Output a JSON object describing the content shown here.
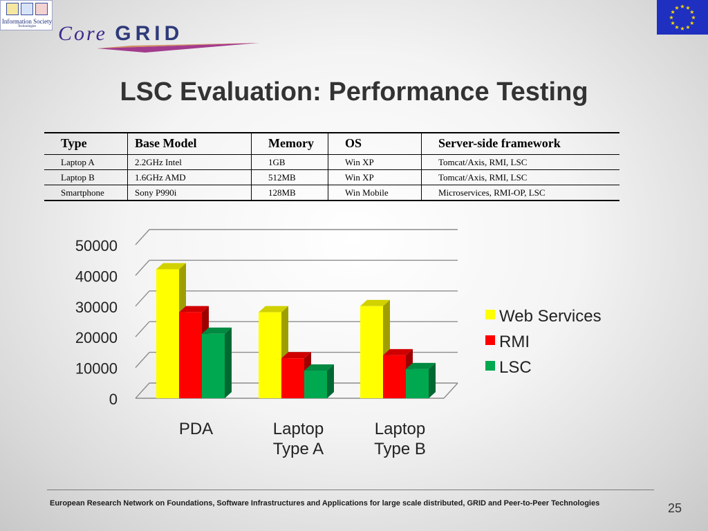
{
  "header": {
    "ist_logo_text": "Information Society",
    "ist_logo_subtext": "Technologies",
    "brand_core": "Core",
    "brand_grid": "GRID"
  },
  "title": "LSC Evaluation: Performance Testing",
  "table": {
    "headers": [
      "Type",
      "Base Model",
      "Memory",
      "OS",
      "Server-side framework"
    ],
    "rows": [
      [
        "Laptop A",
        "2.2GHz Intel",
        "1GB",
        "Win XP",
        "Tomcat/Axis, RMI, LSC"
      ],
      [
        "Laptop B",
        "1.6GHz AMD",
        "512MB",
        "Win XP",
        "Tomcat/Axis, RMI, LSC"
      ],
      [
        "Smartphone",
        "Sony P990i",
        "128MB",
        "Win Mobile",
        "Microservices, RMI-OP, LSC"
      ]
    ]
  },
  "chart_data": {
    "type": "bar",
    "style": "3d-clustered",
    "categories": [
      [
        "PDA"
      ],
      [
        "Laptop",
        "Type A"
      ],
      [
        "Laptop",
        "Type B"
      ]
    ],
    "series": [
      {
        "name": "Web Services",
        "values": [
          42000,
          28000,
          30000
        ],
        "color": "#ffff00"
      },
      {
        "name": "RMI",
        "values": [
          28000,
          13000,
          14000
        ],
        "color": "#ff0000"
      },
      {
        "name": "LSC",
        "values": [
          21000,
          9000,
          9500
        ],
        "color": "#00a850"
      }
    ],
    "yticks": [
      0,
      10000,
      20000,
      30000,
      40000,
      50000
    ],
    "ylim": [
      0,
      50000
    ],
    "grid": true,
    "legend_position": "right",
    "title": "",
    "xlabel": "",
    "ylabel": ""
  },
  "footer": {
    "text": "European Research Network on Foundations, Software Infrastructures and Applications for large scale distributed, GRID and Peer-to-Peer Technologies",
    "page_number": "25"
  },
  "colors": {
    "eu_flag_blue": "#1f2fbf",
    "eu_star_yellow": "#ffdd00",
    "title_text": "#333333"
  }
}
